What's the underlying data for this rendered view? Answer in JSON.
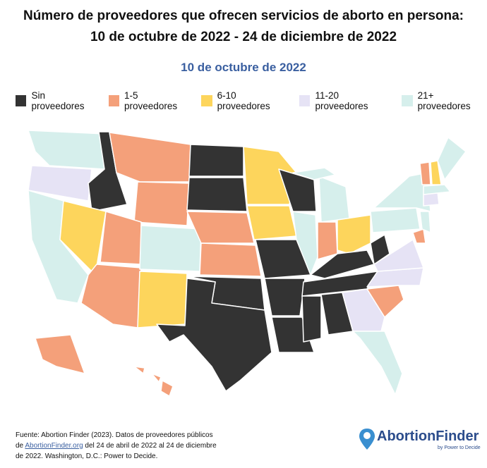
{
  "header": {
    "title_line1": "Número de proveedores que ofrecen servicios de aborto en persona:",
    "title_line2": "10 de octubre de 2022 - 24 de diciembre de 2022",
    "subtitle": "10 de octubre de 2022"
  },
  "legend": {
    "items": [
      {
        "label": "Sin proveedores",
        "color": "#333333"
      },
      {
        "label": "1-5 proveedores",
        "color": "#f4a07a"
      },
      {
        "label": "6-10 proveedores",
        "color": "#fdd55c"
      },
      {
        "label": "11-20 proveedores",
        "color": "#e6e3f5"
      },
      {
        "label": "21+ proveedores",
        "color": "#d6efec"
      }
    ]
  },
  "source": {
    "before": "Fuente: Abortion Finder (2023). Datos de proveedores públicos de",
    "link": "AbortionFinder.org",
    "after": "del 24 de abril de 2022 al 24 de diciembre de 2022. Washington, D.C.: Power to Decide."
  },
  "logo": {
    "name": "AbortionFinder",
    "tagline": "by Power to Decide"
  }
}
